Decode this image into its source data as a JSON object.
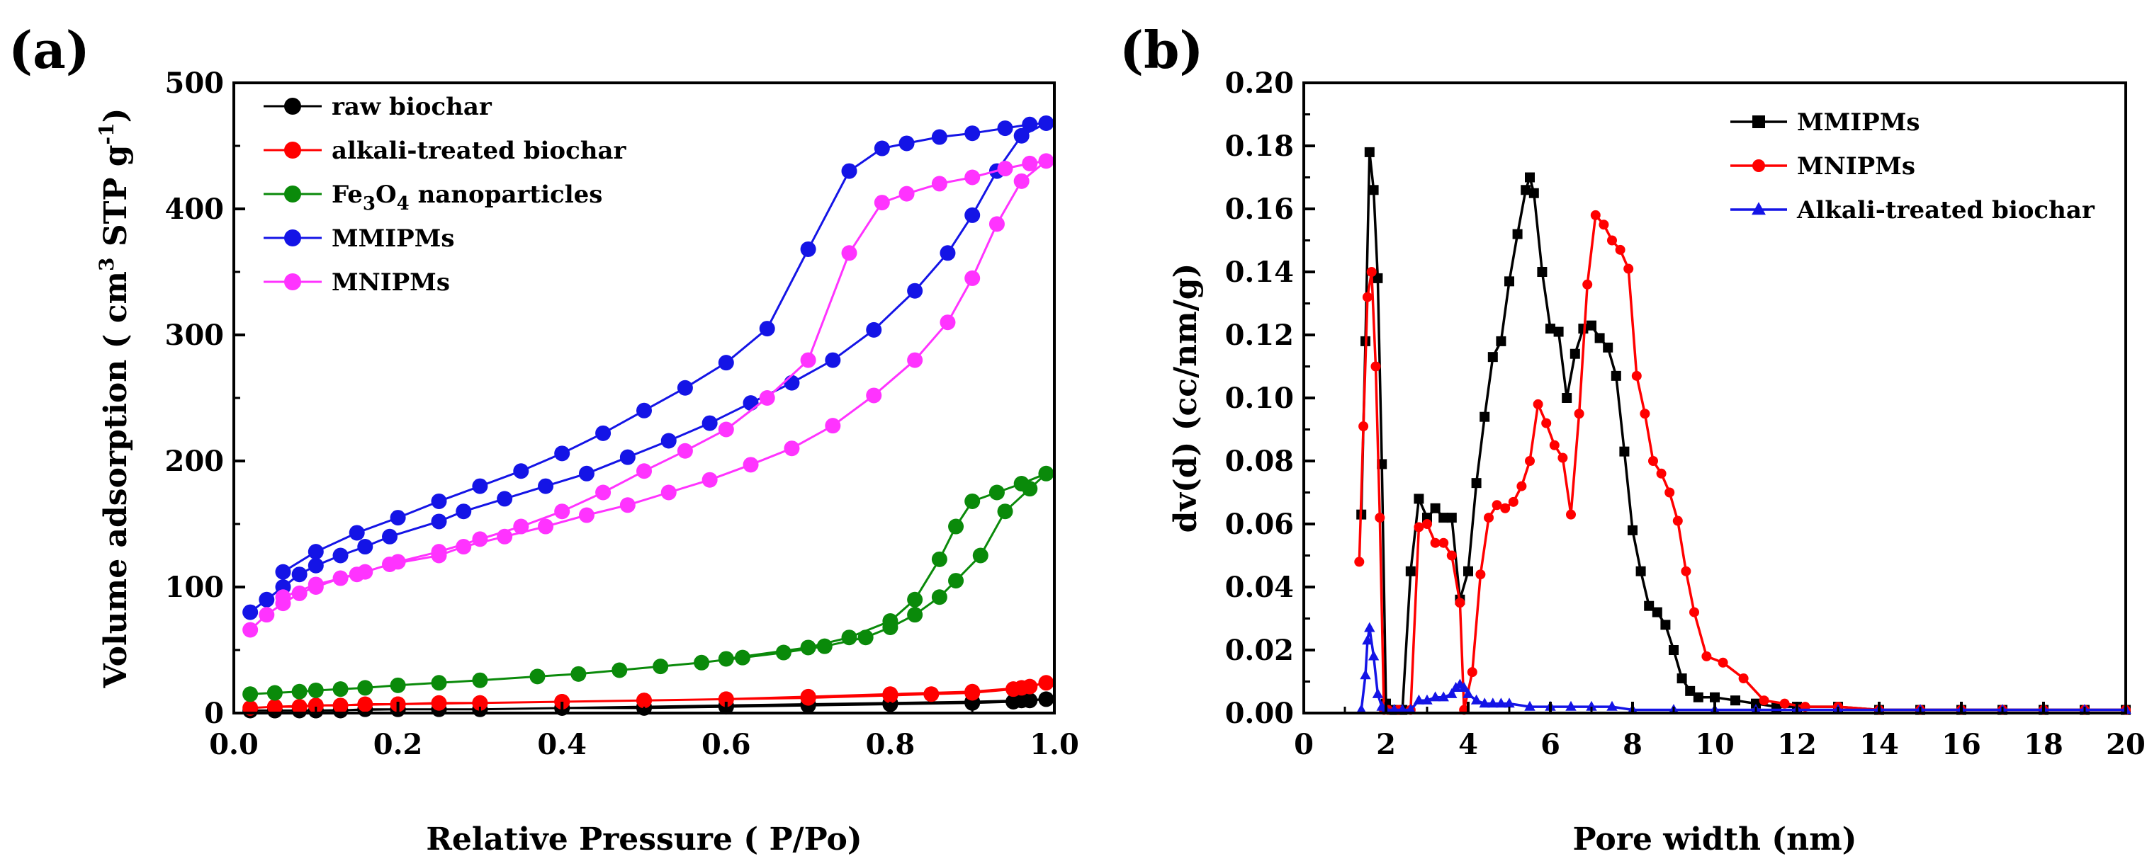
{
  "chart_data": [
    {
      "panel_label": "(a)",
      "type": "line",
      "xlabel": "Relative Pressure ( P/Po)",
      "ylabel": "Volume adsorption ( cm3 STP g-1)",
      "ylabel_parts": {
        "main": "Volume adsorption ( cm",
        "sup1": "3",
        "mid": " STP g",
        "sup2": "-1",
        "end": ")"
      },
      "xlim": [
        0.0,
        1.0
      ],
      "ylim": [
        0,
        500
      ],
      "xticks": [
        "0.0",
        "0.2",
        "0.4",
        "0.6",
        "0.8",
        "1.0"
      ],
      "yticks": [
        "0",
        "100",
        "200",
        "300",
        "400",
        "500"
      ],
      "legend_position": "top-left",
      "marker": "circle",
      "series": [
        {
          "name": "raw biochar",
          "name_parts": [
            "raw biochar"
          ],
          "color": "#000000",
          "x": [
            0.02,
            0.05,
            0.08,
            0.1,
            0.13,
            0.16,
            0.2,
            0.25,
            0.3,
            0.4,
            0.5,
            0.6,
            0.7,
            0.8,
            0.9,
            0.95,
            0.97,
            0.99,
            0.96,
            0.9,
            0.8,
            0.7,
            0.6,
            0.5,
            0.4,
            0.3,
            0.2,
            0.1,
            0.05
          ],
          "y": [
            2,
            2,
            2,
            2,
            2,
            3,
            3,
            3,
            3,
            4,
            4,
            5,
            6,
            7,
            8,
            9,
            10,
            11,
            10,
            9,
            8,
            7,
            6,
            5,
            4,
            3,
            3,
            2,
            2
          ]
        },
        {
          "name": "alkali-treated biochar",
          "name_parts": [
            "alkali-treated biochar"
          ],
          "color": "#ff0000",
          "x": [
            0.02,
            0.05,
            0.08,
            0.1,
            0.13,
            0.16,
            0.2,
            0.25,
            0.3,
            0.4,
            0.5,
            0.6,
            0.7,
            0.8,
            0.85,
            0.9,
            0.95,
            0.97,
            0.99,
            0.96,
            0.9,
            0.8,
            0.7,
            0.6,
            0.5,
            0.4,
            0.3,
            0.2,
            0.1,
            0.05
          ],
          "y": [
            4,
            5,
            5,
            6,
            6,
            7,
            7,
            8,
            8,
            9,
            10,
            11,
            12,
            14,
            15,
            16,
            19,
            21,
            24,
            20,
            17,
            15,
            13,
            11,
            10,
            9,
            8,
            7,
            6,
            5
          ]
        },
        {
          "name": "Fe3O4 nanoparticles",
          "name_parts": [
            "Fe",
            "3",
            "O",
            "4",
            " nanoparticles"
          ],
          "color": "#0a8a0a",
          "x": [
            0.02,
            0.05,
            0.08,
            0.1,
            0.13,
            0.16,
            0.2,
            0.25,
            0.3,
            0.37,
            0.42,
            0.47,
            0.52,
            0.57,
            0.62,
            0.67,
            0.72,
            0.77,
            0.8,
            0.83,
            0.86,
            0.88,
            0.91,
            0.94,
            0.97,
            0.99,
            0.96,
            0.93,
            0.9,
            0.88,
            0.86,
            0.83,
            0.8,
            0.75,
            0.7,
            0.6
          ],
          "y": [
            15,
            16,
            17,
            18,
            19,
            20,
            22,
            24,
            26,
            29,
            31,
            34,
            37,
            40,
            44,
            48,
            53,
            60,
            68,
            78,
            92,
            105,
            125,
            160,
            178,
            190,
            182,
            175,
            168,
            148,
            122,
            90,
            73,
            60,
            52,
            43
          ]
        },
        {
          "name": "MMIPMs",
          "name_parts": [
            "MMIPMs"
          ],
          "color": "#1414e6",
          "x": [
            0.02,
            0.04,
            0.06,
            0.08,
            0.1,
            0.13,
            0.16,
            0.19,
            0.25,
            0.28,
            0.33,
            0.38,
            0.43,
            0.48,
            0.53,
            0.58,
            0.63,
            0.68,
            0.73,
            0.78,
            0.83,
            0.87,
            0.9,
            0.93,
            0.96,
            0.99,
            0.97,
            0.94,
            0.9,
            0.86,
            0.82,
            0.79,
            0.75,
            0.7,
            0.65,
            0.6,
            0.55,
            0.5,
            0.45,
            0.4,
            0.35,
            0.3,
            0.25,
            0.2,
            0.15,
            0.1,
            0.06
          ],
          "y": [
            80,
            90,
            100,
            110,
            117,
            125,
            132,
            140,
            152,
            160,
            170,
            180,
            190,
            203,
            216,
            230,
            246,
            262,
            280,
            304,
            335,
            365,
            395,
            430,
            458,
            468,
            467,
            464,
            460,
            457,
            452,
            448,
            430,
            368,
            305,
            278,
            258,
            240,
            222,
            206,
            192,
            180,
            168,
            155,
            143,
            128,
            112
          ]
        },
        {
          "name": "MNIPMs",
          "name_parts": [
            "MNIPMs"
          ],
          "color": "#ff33ff",
          "x": [
            0.02,
            0.04,
            0.06,
            0.08,
            0.1,
            0.13,
            0.16,
            0.19,
            0.25,
            0.28,
            0.33,
            0.38,
            0.43,
            0.48,
            0.53,
            0.58,
            0.63,
            0.68,
            0.73,
            0.78,
            0.83,
            0.87,
            0.9,
            0.93,
            0.96,
            0.99,
            0.97,
            0.94,
            0.9,
            0.86,
            0.82,
            0.79,
            0.75,
            0.7,
            0.65,
            0.6,
            0.55,
            0.5,
            0.45,
            0.4,
            0.35,
            0.3,
            0.25,
            0.2,
            0.15,
            0.1,
            0.06
          ],
          "y": [
            66,
            78,
            87,
            95,
            100,
            107,
            112,
            118,
            125,
            132,
            140,
            148,
            157,
            165,
            175,
            185,
            197,
            210,
            228,
            252,
            280,
            310,
            345,
            388,
            422,
            438,
            436,
            432,
            425,
            420,
            412,
            405,
            365,
            280,
            250,
            225,
            208,
            192,
            175,
            160,
            148,
            138,
            128,
            120,
            110,
            102,
            92
          ]
        }
      ]
    },
    {
      "panel_label": "(b)",
      "type": "line",
      "xlabel": "Pore width (nm)",
      "ylabel": "dv(d) (cc/nm/g)",
      "xlim": [
        0,
        20
      ],
      "ylim": [
        0,
        0.2
      ],
      "xticks": [
        "0",
        "2",
        "4",
        "6",
        "8",
        "10",
        "12",
        "14",
        "16",
        "18",
        "20"
      ],
      "yticks": [
        "0.00",
        "0.02",
        "0.04",
        "0.06",
        "0.08",
        "0.10",
        "0.12",
        "0.14",
        "0.16",
        "0.18",
        "0.20"
      ],
      "legend_position": "top-right",
      "series": [
        {
          "name": "MMIPMs",
          "name_parts": [
            "MMIPMs"
          ],
          "color": "#000000",
          "marker": "square",
          "x": [
            1.4,
            1.5,
            1.6,
            1.7,
            1.8,
            1.9,
            2.0,
            2.2,
            2.4,
            2.6,
            2.8,
            3.0,
            3.2,
            3.4,
            3.6,
            3.8,
            4.0,
            4.2,
            4.4,
            4.6,
            4.8,
            5.0,
            5.2,
            5.4,
            5.5,
            5.6,
            5.8,
            6.0,
            6.2,
            6.4,
            6.6,
            6.8,
            7.0,
            7.2,
            7.4,
            7.6,
            7.8,
            8.0,
            8.2,
            8.4,
            8.6,
            8.8,
            9.0,
            9.2,
            9.4,
            9.6,
            10.0,
            10.5,
            11.0,
            11.5,
            12.0,
            13.0,
            14.0,
            15.0,
            16.0,
            17.0,
            18.0,
            19.0,
            20.0
          ],
          "y": [
            0.063,
            0.118,
            0.178,
            0.166,
            0.138,
            0.079,
            0.003,
            0.001,
            0.001,
            0.045,
            0.068,
            0.062,
            0.065,
            0.062,
            0.062,
            0.036,
            0.045,
            0.073,
            0.094,
            0.113,
            0.118,
            0.137,
            0.152,
            0.166,
            0.17,
            0.165,
            0.14,
            0.122,
            0.121,
            0.1,
            0.114,
            0.122,
            0.123,
            0.119,
            0.116,
            0.107,
            0.083,
            0.058,
            0.045,
            0.034,
            0.032,
            0.028,
            0.02,
            0.011,
            0.007,
            0.005,
            0.005,
            0.004,
            0.003,
            0.002,
            0.002,
            0.002,
            0.001,
            0.001,
            0.001,
            0.001,
            0.001,
            0.001,
            0.001
          ]
        },
        {
          "name": "MNIPMs",
          "name_parts": [
            "MNIPMs"
          ],
          "color": "#ff0000",
          "marker": "circle",
          "x": [
            1.35,
            1.45,
            1.55,
            1.65,
            1.75,
            1.85,
            1.95,
            2.05,
            2.3,
            2.6,
            2.8,
            3.0,
            3.2,
            3.4,
            3.6,
            3.8,
            3.9,
            4.1,
            4.3,
            4.5,
            4.7,
            4.9,
            5.1,
            5.3,
            5.5,
            5.7,
            5.9,
            6.1,
            6.3,
            6.5,
            6.7,
            6.9,
            7.1,
            7.3,
            7.5,
            7.7,
            7.9,
            8.1,
            8.3,
            8.5,
            8.7,
            8.9,
            9.1,
            9.3,
            9.5,
            9.8,
            10.2,
            10.7,
            11.2,
            11.7,
            12.2,
            13,
            14,
            15,
            16,
            17,
            18,
            19,
            20
          ],
          "y": [
            0.048,
            0.091,
            0.132,
            0.14,
            0.11,
            0.062,
            0.001,
            0.001,
            0.001,
            0.001,
            0.059,
            0.06,
            0.054,
            0.054,
            0.05,
            0.035,
            0.001,
            0.013,
            0.044,
            0.062,
            0.066,
            0.065,
            0.067,
            0.072,
            0.08,
            0.098,
            0.092,
            0.085,
            0.081,
            0.063,
            0.095,
            0.136,
            0.158,
            0.155,
            0.15,
            0.147,
            0.141,
            0.107,
            0.095,
            0.08,
            0.076,
            0.07,
            0.061,
            0.045,
            0.032,
            0.018,
            0.016,
            0.011,
            0.004,
            0.003,
            0.002,
            0.002,
            0.001,
            0.001,
            0.001,
            0.001,
            0.001,
            0.001,
            0.001
          ]
        },
        {
          "name": "Alkali-treated biochar",
          "name_parts": [
            "Alkali-treated biochar"
          ],
          "color": "#1414e6",
          "marker": "triangle",
          "x": [
            1.4,
            1.5,
            1.55,
            1.6,
            1.7,
            1.8,
            1.9,
            2.0,
            2.2,
            2.4,
            2.6,
            2.8,
            3.0,
            3.2,
            3.4,
            3.6,
            3.7,
            3.8,
            3.9,
            4.0,
            4.2,
            4.4,
            4.6,
            4.8,
            5.0,
            5.5,
            6,
            6.5,
            7,
            7.5,
            8,
            9,
            10,
            11,
            12,
            13,
            14,
            15,
            16,
            17,
            18,
            19,
            20
          ],
          "y": [
            0.001,
            0.012,
            0.023,
            0.027,
            0.018,
            0.006,
            0.002,
            0.001,
            0.001,
            0.001,
            0.001,
            0.004,
            0.004,
            0.005,
            0.005,
            0.006,
            0.008,
            0.009,
            0.008,
            0.006,
            0.004,
            0.003,
            0.003,
            0.003,
            0.003,
            0.002,
            0.002,
            0.002,
            0.002,
            0.002,
            0.001,
            0.001,
            0.001,
            0.001,
            0.001,
            0.001,
            0.001,
            0.001,
            0.001,
            0.001,
            0.001,
            0.001,
            0.001
          ]
        }
      ]
    }
  ]
}
